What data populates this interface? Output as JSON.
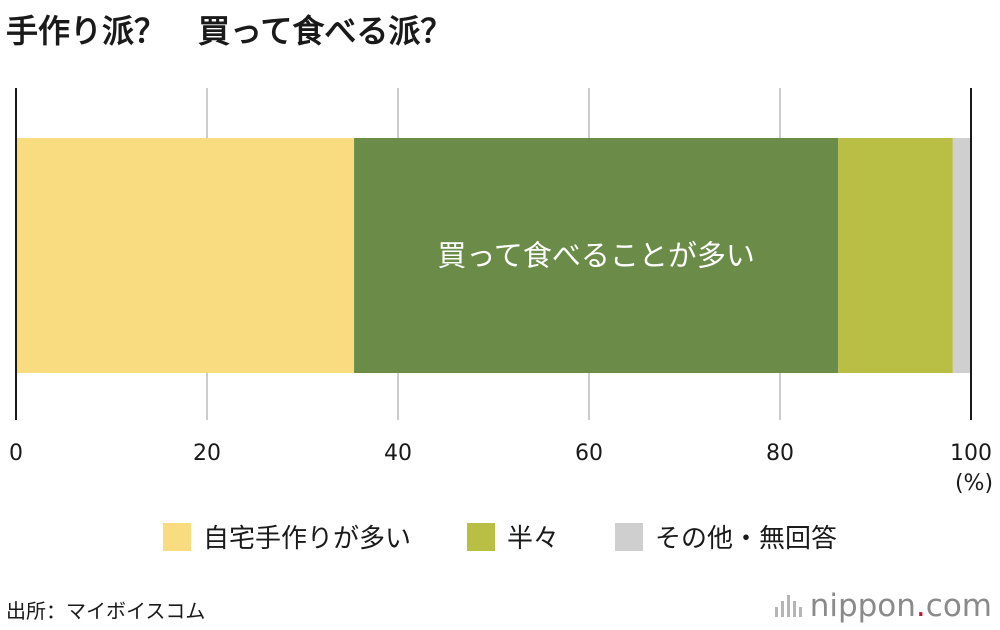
{
  "title": "手作り派？　買って食べる派？",
  "chart_data": {
    "type": "bar",
    "orientation": "horizontal-stacked",
    "xlim": [
      0,
      100
    ],
    "x_ticks": [
      "0",
      "20",
      "40",
      "60",
      "80",
      "100"
    ],
    "x_unit": "(%)",
    "grid": true,
    "segments": [
      {
        "name": "自宅手作りが多い",
        "value": 35.4,
        "color": "#f9dc7f",
        "label": ""
      },
      {
        "name": "買って食べることが多い",
        "value": 50.7,
        "color": "#6a8c48",
        "label": "買って食べることが多い"
      },
      {
        "name": "半々",
        "value": 12.0,
        "color": "#b9bf44",
        "label": ""
      },
      {
        "name": "その他・無回答",
        "value": 1.9,
        "color": "#cfcfcf",
        "label": ""
      }
    ]
  },
  "legend": [
    {
      "label": "自宅手作りが多い",
      "color": "#f9dc7f"
    },
    {
      "label": "半々",
      "color": "#b9bf44"
    },
    {
      "label": "その他・無回答",
      "color": "#cfcfcf"
    }
  ],
  "source": "出所：マイボイスコム",
  "brand": {
    "name": "nippon",
    "dot": ".",
    "tld": "com"
  }
}
